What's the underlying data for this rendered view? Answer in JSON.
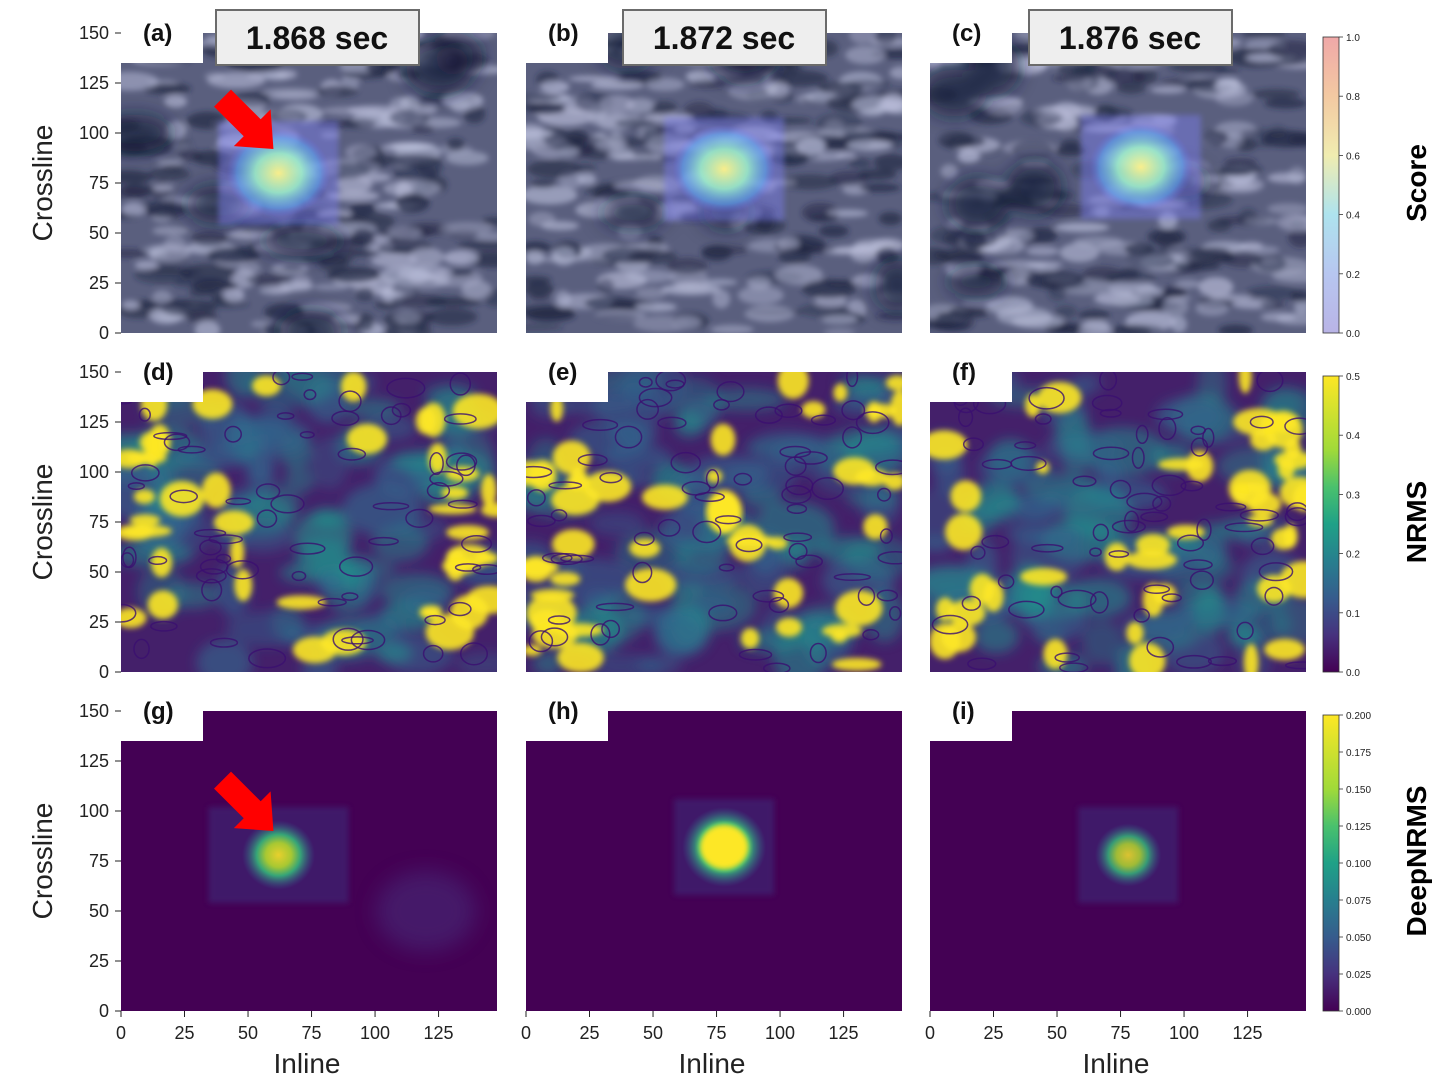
{
  "chart_data": {
    "type": "heatmap",
    "times": [
      "1.868 sec",
      "1.872 sec",
      "1.876 sec"
    ],
    "panel_labels": [
      "(a)",
      "(b)",
      "(c)",
      "(d)",
      "(e)",
      "(f)",
      "(g)",
      "(h)",
      "(i)"
    ],
    "rows": [
      {
        "name": "Score",
        "colorbar": {
          "min": 0.0,
          "max": 1.0,
          "ticks": [
            "0.0",
            "0.2",
            "0.4",
            "0.6",
            "0.8",
            "1.0"
          ],
          "colormap": "jet-transparent"
        },
        "hotspots": [
          {
            "inline": 62,
            "crossline": 80,
            "peak": 0.5
          },
          {
            "inline": 78,
            "crossline": 82,
            "peak": 0.65
          },
          {
            "inline": 83,
            "crossline": 83,
            "peak": 0.55
          }
        ]
      },
      {
        "name": "NRMS",
        "colorbar": {
          "min": 0.0,
          "max": 0.5,
          "ticks": [
            "0.0",
            "0.1",
            "0.2",
            "0.3",
            "0.4",
            "0.5"
          ],
          "colormap": "viridis"
        }
      },
      {
        "name": "DeepNRMS",
        "colorbar": {
          "min": 0.0,
          "max": 0.2,
          "ticks": [
            "0.000",
            "0.025",
            "0.050",
            "0.075",
            "0.100",
            "0.125",
            "0.150",
            "0.175",
            "0.200"
          ],
          "colormap": "viridis"
        },
        "hotspots": [
          {
            "inline": 62,
            "crossline": 78,
            "peak": 0.15
          },
          {
            "inline": 78,
            "crossline": 82,
            "peak": 0.2
          },
          {
            "inline": 78,
            "crossline": 78,
            "peak": 0.12
          }
        ]
      }
    ],
    "xlabel": "Inline",
    "ylabel": "Crossline",
    "xlim": [
      0,
      148
    ],
    "ylim": [
      0,
      150
    ],
    "xticks": [
      0,
      25,
      50,
      75,
      100,
      125
    ],
    "yticks": [
      0,
      25,
      50,
      75,
      100,
      125,
      150
    ],
    "annotations": [
      {
        "panel": "(a)",
        "type": "arrow",
        "color": "#ff0000",
        "points_to": {
          "inline": 60,
          "crossline": 92
        }
      },
      {
        "panel": "(g)",
        "type": "arrow",
        "color": "#ff0000",
        "points_to": {
          "inline": 60,
          "crossline": 90
        }
      }
    ]
  }
}
